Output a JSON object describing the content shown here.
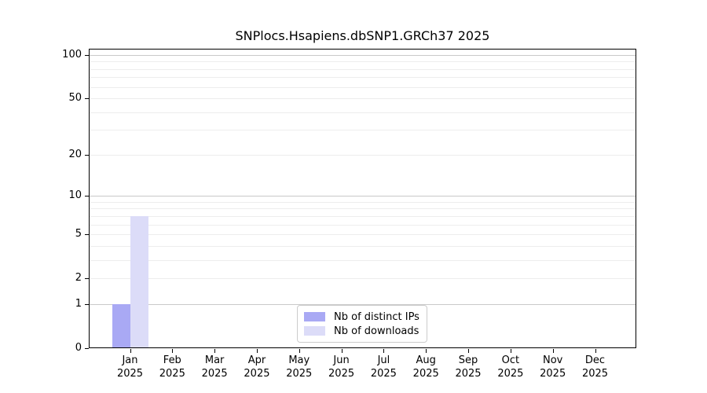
{
  "chart_data": {
    "type": "bar",
    "title": "SNPlocs.Hsapiens.dbSNP1.GRCh37 2025",
    "x_year": "2025",
    "categories": [
      "Jan",
      "Feb",
      "Mar",
      "Apr",
      "May",
      "Jun",
      "Jul",
      "Aug",
      "Sep",
      "Oct",
      "Nov",
      "Dec"
    ],
    "series": [
      {
        "name": "Nb of distinct IPs",
        "color": "#a9a9f4",
        "values": [
          1,
          0,
          0,
          0,
          0,
          0,
          0,
          0,
          0,
          0,
          0,
          0
        ]
      },
      {
        "name": "Nb of downloads",
        "color": "#dcdcf8",
        "values": [
          7,
          0,
          0,
          0,
          0,
          0,
          0,
          0,
          0,
          0,
          0,
          0
        ]
      }
    ],
    "y_scale": "log1p",
    "ylim": [
      0,
      100
    ],
    "y_ticks": [
      100,
      50,
      20,
      10,
      5,
      2,
      1,
      0
    ],
    "gridlines_major": [
      1,
      10,
      100
    ],
    "gridlines_minor": [
      2,
      3,
      4,
      5,
      6,
      7,
      8,
      9,
      20,
      30,
      40,
      50,
      60,
      70,
      80,
      90
    ],
    "legend_position": "bottom-center",
    "colors": {
      "grid_major": "#c9c9c9",
      "grid_minor": "#ededed",
      "axis": "#000000",
      "background": "#ffffff"
    }
  }
}
